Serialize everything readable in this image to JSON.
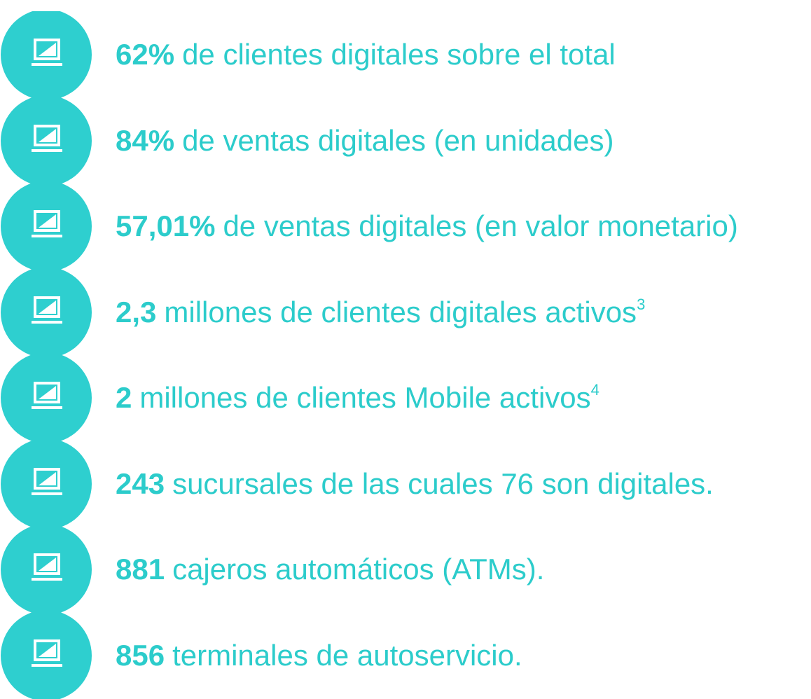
{
  "items": [
    {
      "value": "62%",
      "text": "de clientes digitales sobre el total"
    },
    {
      "value": "84%",
      "text": "de ventas digitales (en unidades)"
    },
    {
      "value": "57,01%",
      "text": "de ventas digitales (en valor monetario)"
    },
    {
      "value": "2,3",
      "text": "millones de clientes digitales activos",
      "sup": "3"
    },
    {
      "value": "2",
      "text": "millones de clientes Mobile activos",
      "sup": "4"
    },
    {
      "value": "243",
      "text": "sucursales de las cuales 76 son digitales."
    },
    {
      "value": "881",
      "text": "cajeros automáticos (ATMs)."
    },
    {
      "value": "856",
      "text": "terminales de autoservicio."
    }
  ]
}
